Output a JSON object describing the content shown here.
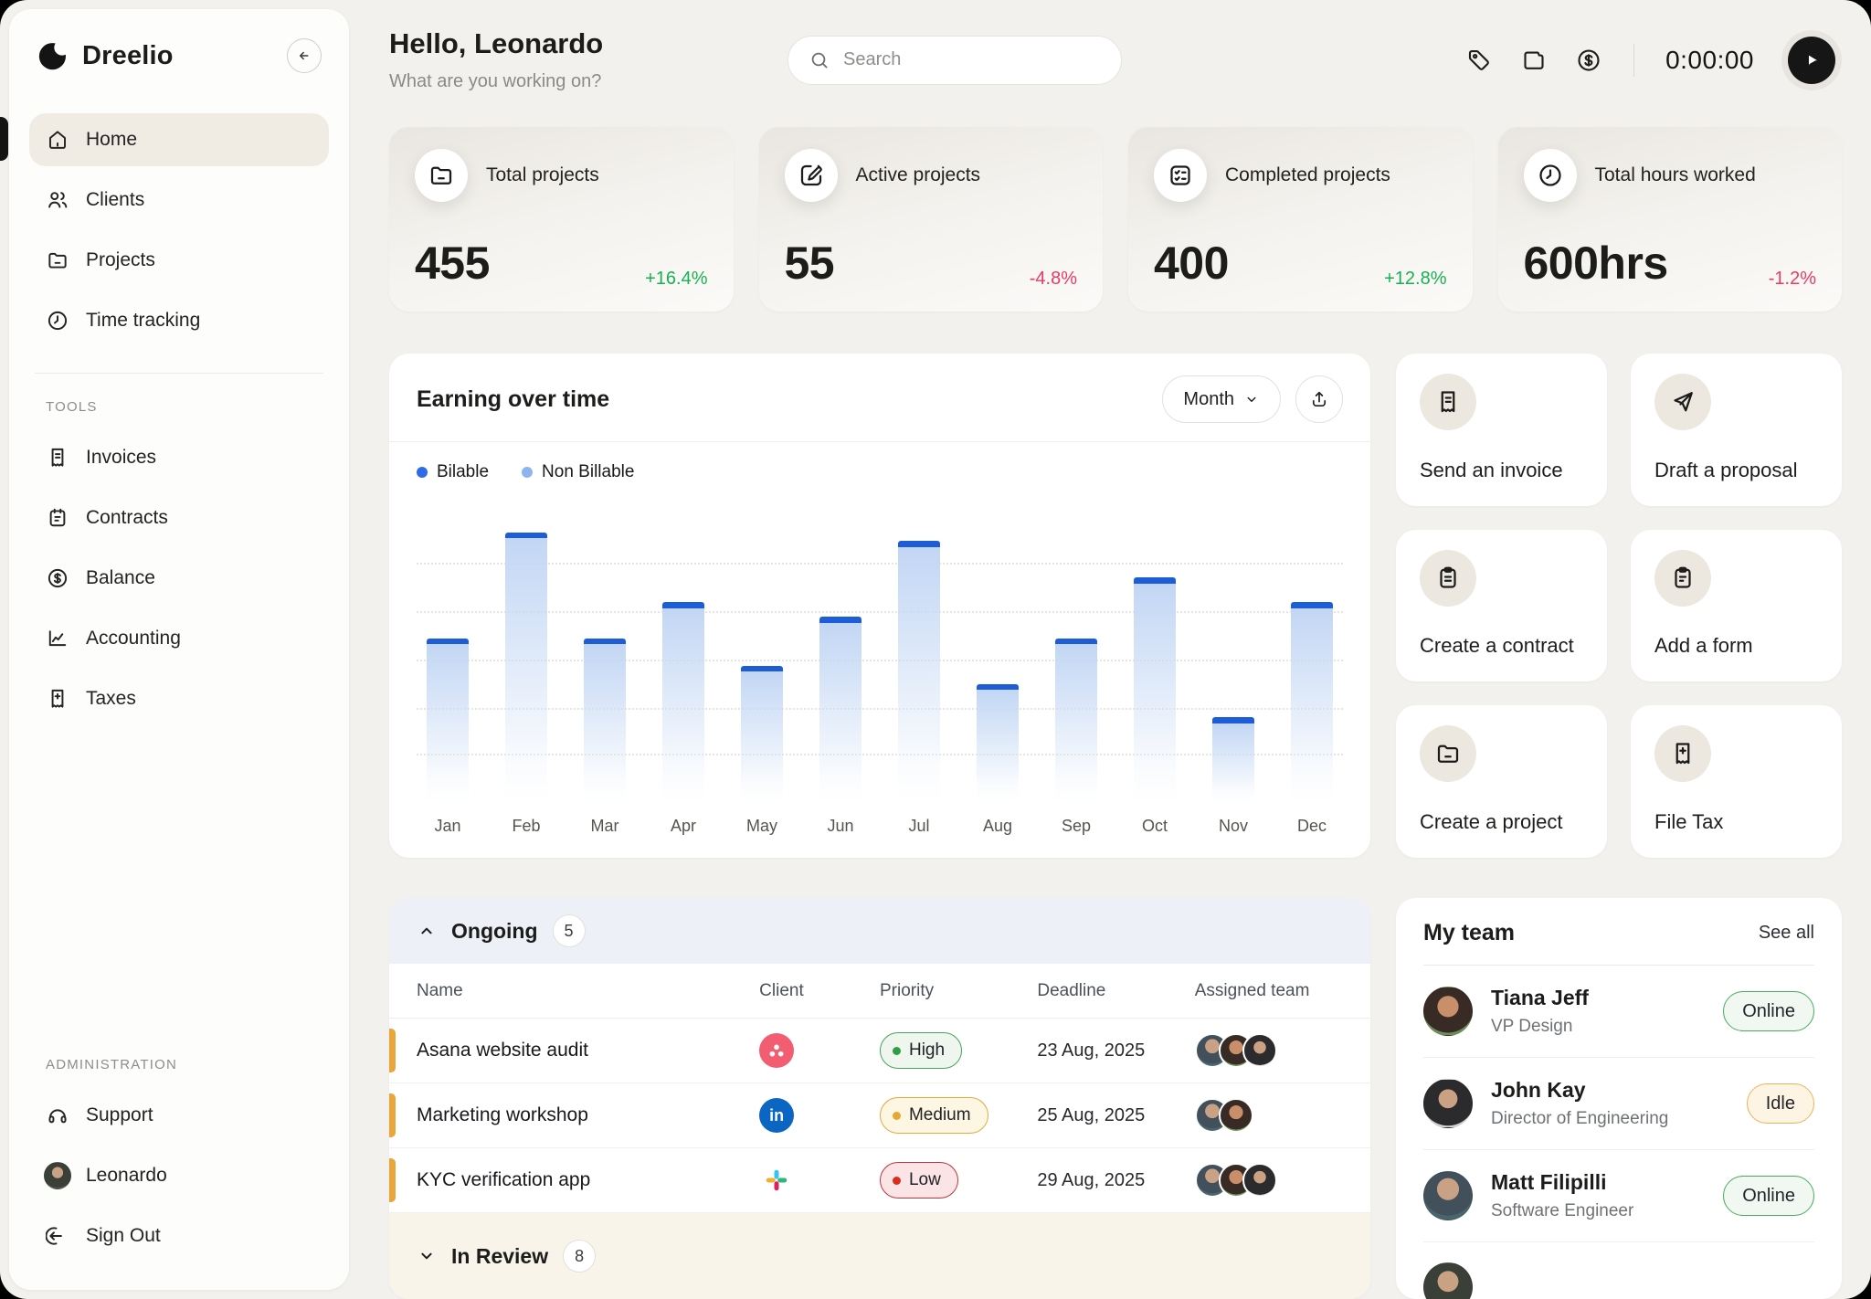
{
  "sidebar": {
    "brand": "Dreelio",
    "nav": [
      {
        "label": "Home",
        "icon": "home",
        "active": true
      },
      {
        "label": "Clients",
        "icon": "users",
        "active": false
      },
      {
        "label": "Projects",
        "icon": "folder-minus",
        "active": false
      },
      {
        "label": "Time tracking",
        "icon": "clock",
        "active": false
      }
    ],
    "sections": [
      {
        "label": "TOOLS",
        "items": [
          {
            "label": "Invoices",
            "icon": "receipt"
          },
          {
            "label": "Contracts",
            "icon": "clipboard-cal"
          },
          {
            "label": "Balance",
            "icon": "dollar-circle"
          },
          {
            "label": "Accounting",
            "icon": "chart-line"
          },
          {
            "label": "Taxes",
            "icon": "receipt-plus"
          }
        ]
      },
      {
        "label": "ADMINISTRATION",
        "items": [
          {
            "label": "Support",
            "icon": "headphones"
          },
          {
            "label": "Leonardo",
            "avatar": "av-leo"
          },
          {
            "label": "Sign Out",
            "icon": "sign-out"
          }
        ]
      }
    ]
  },
  "header": {
    "greeting": "Hello, Leonardo",
    "subtitle": "What are you working on?",
    "search_placeholder": "Search",
    "timer": "0:00:00"
  },
  "stats": [
    {
      "label": "Total projects",
      "value": "455",
      "delta": "+16.4%",
      "trend": "up",
      "icon": "folder-minus"
    },
    {
      "label": "Active projects",
      "value": "55",
      "delta": "-4.8%",
      "trend": "down",
      "icon": "pen-square"
    },
    {
      "label": "Completed projects",
      "value": "400",
      "delta": "+12.8%",
      "trend": "up",
      "icon": "checklist"
    },
    {
      "label": "Total hours worked",
      "value": "600hrs",
      "delta": "-1.2%",
      "trend": "down",
      "icon": "clock"
    }
  ],
  "chart": {
    "title": "Earning over time",
    "range_label": "Month",
    "legend": [
      {
        "label": "Bilable",
        "color": "#2e6be6"
      },
      {
        "label": "Non Billable",
        "color": "#8cb4f0"
      }
    ]
  },
  "chart_data": {
    "type": "bar",
    "title": "Earning over time",
    "categories": [
      "Jan",
      "Feb",
      "Mar",
      "Apr",
      "May",
      "Jun",
      "Jul",
      "Aug",
      "Sep",
      "Oct",
      "Nov",
      "Dec"
    ],
    "series": [
      {
        "name": "Bilable",
        "values": [
          52,
          87,
          52,
          64,
          43,
          59,
          84,
          37,
          52,
          72,
          26,
          64
        ]
      },
      {
        "name": "Non Billable",
        "values": [
          2,
          2,
          2,
          2,
          2,
          2,
          2,
          2,
          2,
          2,
          2,
          2
        ]
      }
    ],
    "unit": "percent of plot height (y-axis unlabeled, values estimated from bar heights)",
    "legend_position": "top-left",
    "grid": "dotted horizontal lines",
    "ylim": [
      0,
      100
    ]
  },
  "quick_actions": [
    {
      "label": "Send an invoice",
      "icon": "receipt"
    },
    {
      "label": "Draft a proposal",
      "icon": "send"
    },
    {
      "label": "Create a contract",
      "icon": "clipboard"
    },
    {
      "label": "Add a form",
      "icon": "clipboard-text"
    },
    {
      "label": "Create a project",
      "icon": "folder-minus"
    },
    {
      "label": "File Tax",
      "icon": "receipt-plus"
    }
  ],
  "projects_table": {
    "section_label": "Ongoing",
    "count": "5",
    "columns": [
      "Name",
      "Client",
      "Priority",
      "Deadline",
      "Assigned team"
    ],
    "rows": [
      {
        "name": "Asana website audit",
        "client": "asana",
        "priority": "High",
        "deadline": "23 Aug, 2025",
        "team_size": 3
      },
      {
        "name": "Marketing workshop",
        "client": "linkedin",
        "priority": "Medium",
        "deadline": "25 Aug, 2025",
        "team_size": 2
      },
      {
        "name": "KYC verification app",
        "client": "slack",
        "priority": "Low",
        "deadline": "29 Aug, 2025",
        "team_size": 3
      }
    ],
    "collapsed_section": {
      "label": "In Review",
      "count": "8"
    }
  },
  "team": {
    "title": "My team",
    "see_all": "See all",
    "members": [
      {
        "name": "Tiana Jeff",
        "role": "VP Design",
        "status": "Online",
        "avatar": "av-tiana"
      },
      {
        "name": "John Kay",
        "role": "Director of Engineering",
        "status": "Idle",
        "avatar": "av-john"
      },
      {
        "name": "Matt Filipilli",
        "role": "Software Engineer",
        "status": "Online",
        "avatar": "av-matt"
      }
    ]
  },
  "colors": {
    "bar_cap": "#1d5ed8",
    "bar_body_top": "#c2d6f4",
    "delta_up": "#17b154",
    "delta_down": "#e83a66",
    "row_accent": "#e9a63c",
    "ongoing_header_bg": "#edf1f7",
    "in_review_bg": "#f8f4e9"
  }
}
